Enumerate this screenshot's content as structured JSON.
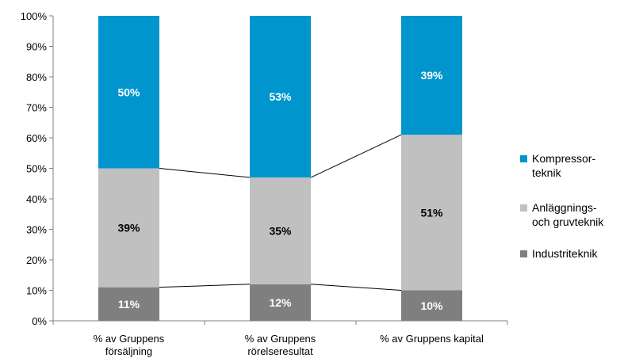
{
  "chart_data": {
    "type": "bar",
    "stacked": true,
    "normalized": true,
    "categories": [
      [
        "% av Gruppens",
        "försäljning"
      ],
      [
        "% av Gruppens",
        "rörelseresultat"
      ],
      [
        "% av Gruppens kapital"
      ]
    ],
    "series": [
      {
        "name": [
          "Industriteknik"
        ],
        "values": [
          11,
          12,
          10
        ],
        "labels": [
          "11%",
          "12%",
          "10%"
        ],
        "color": "#7f7f7f",
        "label_color": "#ffffff"
      },
      {
        "name": [
          "Anläggnings-",
          "och gruvteknik"
        ],
        "values": [
          39,
          35,
          51
        ],
        "labels": [
          "39%",
          "35%",
          "51%"
        ],
        "color": "#c0c0c0",
        "label_color": "#000000"
      },
      {
        "name": [
          "Kompressor-",
          "teknik"
        ],
        "values": [
          50,
          53,
          39
        ],
        "labels": [
          "50%",
          "53%",
          "39%"
        ],
        "color": "#0096cd",
        "label_color": "#ffffff"
      }
    ],
    "ylim": [
      0,
      100
    ],
    "yticks": [
      "0%",
      "10%",
      "20%",
      "30%",
      "40%",
      "50%",
      "60%",
      "70%",
      "80%",
      "90%",
      "100%"
    ],
    "series_lines": true,
    "gridlines": false,
    "legend_position": "right"
  }
}
